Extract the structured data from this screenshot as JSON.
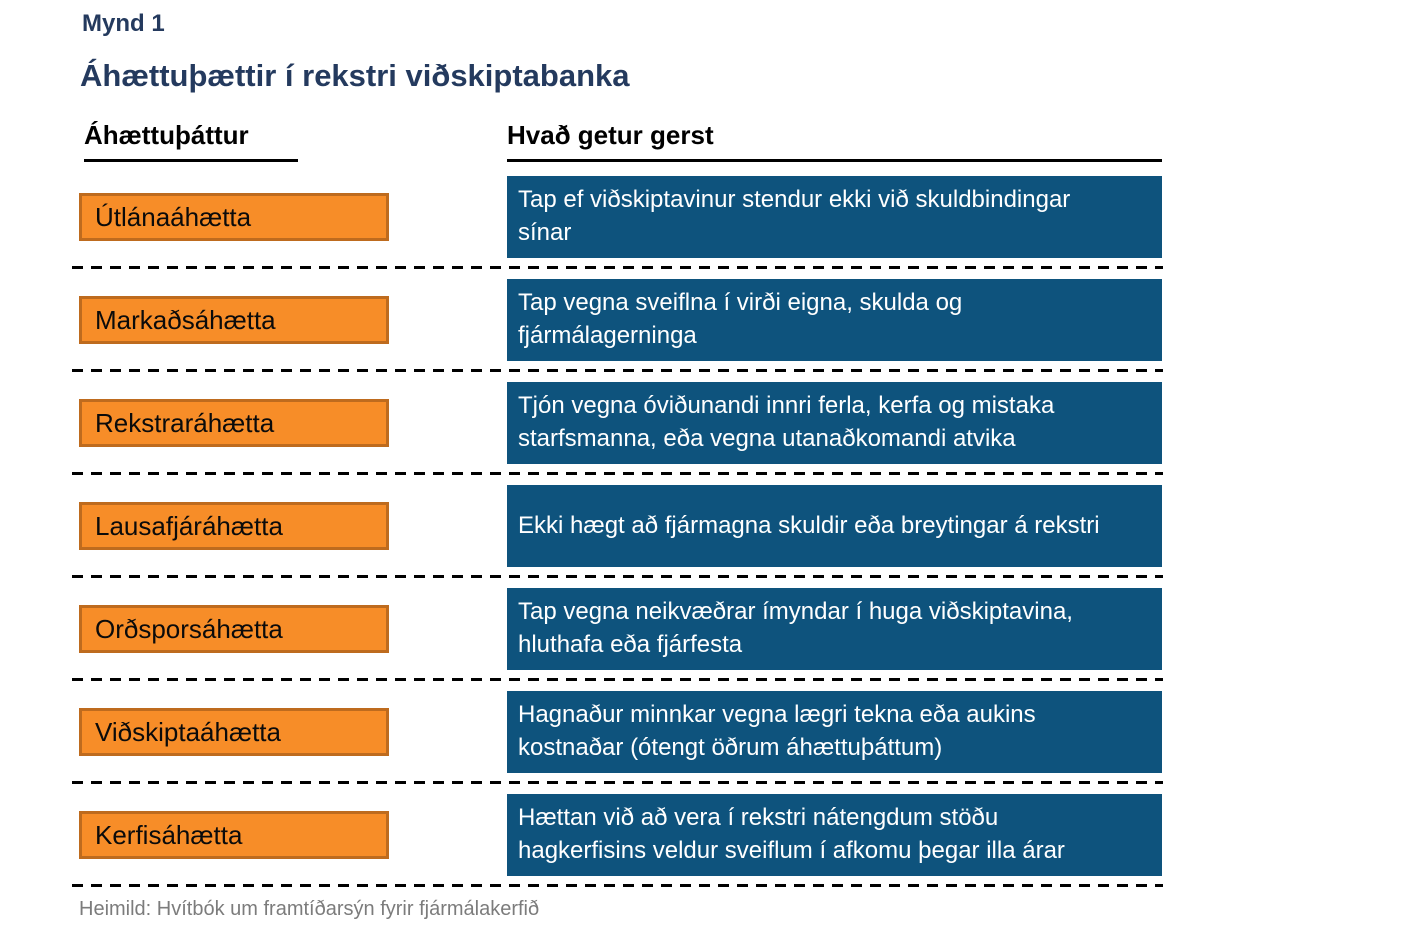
{
  "figure_label": "Mynd 1",
  "title": "Áhættuþættir í rekstri viðskiptabanka",
  "columns": {
    "risk_header": "Áhættuþáttur",
    "event_header": "Hvað getur gerst"
  },
  "rows": [
    {
      "risk": "Útlánaáhætta",
      "event": "Tap ef viðskiptavinur stendur ekki við skuldbindingar\nsínar"
    },
    {
      "risk": "Markaðsáhætta",
      "event": "Tap vegna sveiflna í virði eigna, skulda og\nfjármálagerninga"
    },
    {
      "risk": "Rekstraráhætta",
      "event": "Tjón vegna óviðunandi innri ferla, kerfa og mistaka\nstarfsmanna, eða vegna utanaðkomandi atvika"
    },
    {
      "risk": "Lausafjáráhætta",
      "event": "Ekki hægt að fjármagna skuldir eða breytingar á rekstri"
    },
    {
      "risk": "Orðsporsáhætta",
      "event": "Tap vegna neikvæðrar ímyndar í huga viðskiptavina,\nhluthafa eða fjárfesta"
    },
    {
      "risk": "Viðskiptaáhætta",
      "event": "Hagnaður minnkar vegna lægri tekna eða aukins\nkostnaðar (ótengt öðrum áhættuþáttum)"
    },
    {
      "risk": "Kerfisáhætta",
      "event": "Hættan við að vera í rekstri nátengdum stöðu\nhagkerfisins veldur sveiflum í afkomu þegar illa árar"
    }
  ],
  "source": "Heimild: Hvítbók um framtíðarsýn fyrir fjármálakerfið",
  "colors": {
    "risk_box_fill": "#F78D28",
    "risk_box_border": "#BE6B1E",
    "event_box_fill": "#0E537D",
    "event_text": "#FFFFFF",
    "title_navy": "#243A5E",
    "header_text": "#000000",
    "source_gray": "#7C7C7C",
    "background": "#FFFFFF"
  }
}
